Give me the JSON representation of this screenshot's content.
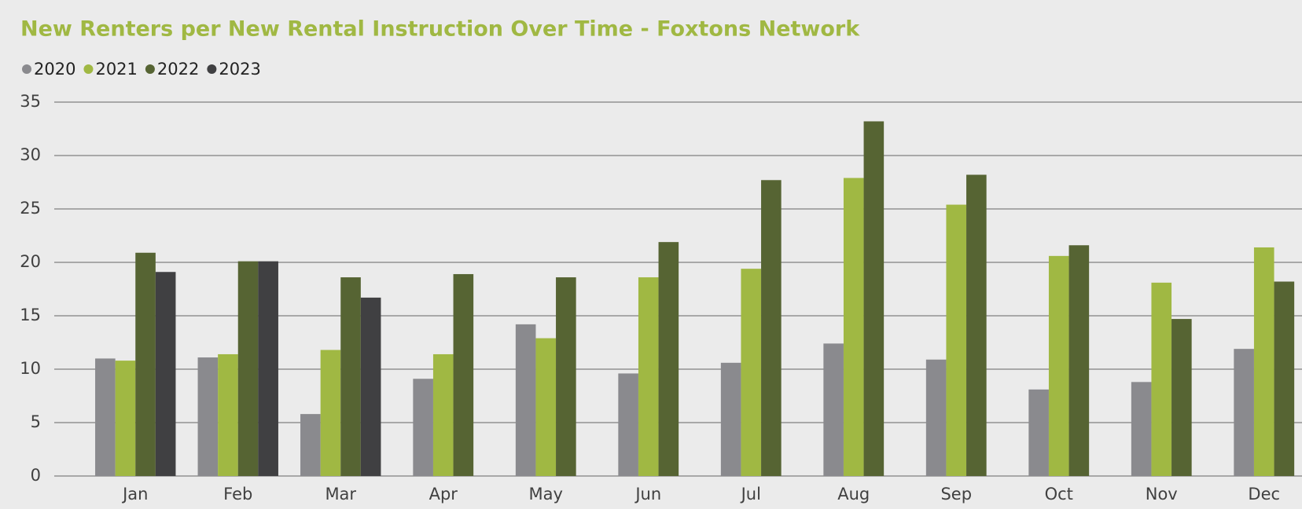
{
  "chart_data": {
    "type": "bar",
    "title": "New Renters per New Rental Instruction Over Time - Foxtons Network",
    "categories": [
      "Jan",
      "Feb",
      "Mar",
      "Apr",
      "May",
      "Jun",
      "Jul",
      "Aug",
      "Sep",
      "Oct",
      "Nov",
      "Dec"
    ],
    "series": [
      {
        "name": "2020",
        "color": "#8a8a8e",
        "values": [
          11,
          11.1,
          5.8,
          9.1,
          14.2,
          9.6,
          10.6,
          12.4,
          10.9,
          8.1,
          8.8,
          11.9
        ]
      },
      {
        "name": "2021",
        "color": "#a0b843",
        "values": [
          10.8,
          11.4,
          11.8,
          11.4,
          12.9,
          18.6,
          19.4,
          27.9,
          25.4,
          20.6,
          18.1,
          21.4
        ]
      },
      {
        "name": "2022",
        "color": "#566433",
        "values": [
          20.9,
          20.1,
          18.6,
          18.9,
          18.6,
          21.9,
          27.7,
          33.2,
          28.2,
          21.6,
          14.7,
          18.2
        ]
      },
      {
        "name": "2023",
        "color": "#404042",
        "values": [
          19.1,
          20.1,
          16.7,
          null,
          null,
          null,
          null,
          null,
          null,
          null,
          null,
          null
        ]
      }
    ],
    "ylim": [
      0,
      35
    ],
    "yticks": [
      0,
      5,
      10,
      15,
      20,
      25,
      30,
      35
    ],
    "grid": true,
    "legend": "top-left"
  }
}
